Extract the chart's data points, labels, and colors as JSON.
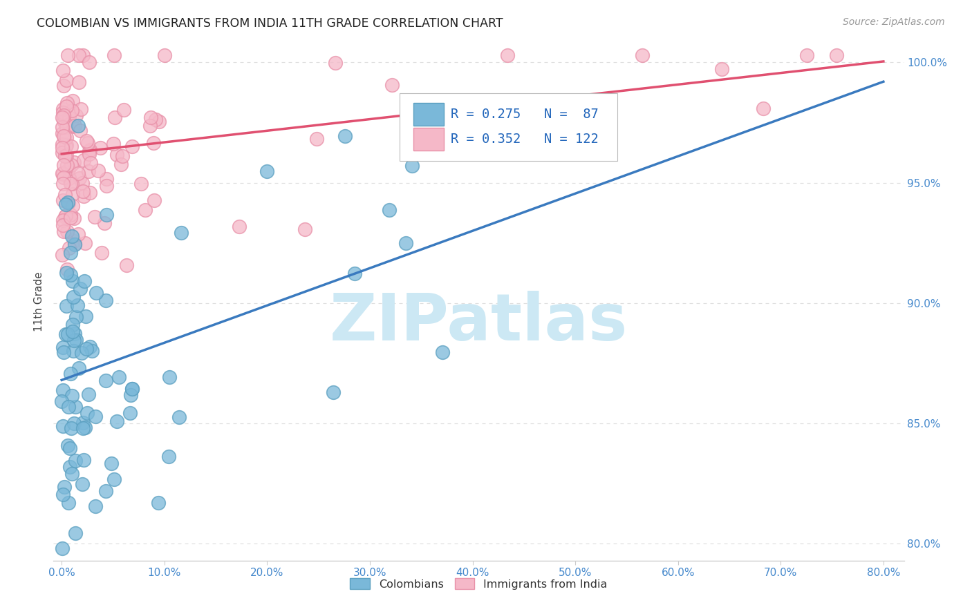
{
  "title": "COLOMBIAN VS IMMIGRANTS FROM INDIA 11TH GRADE CORRELATION CHART",
  "source": "Source: ZipAtlas.com",
  "ylabel": "11th Grade",
  "xlim": [
    -0.008,
    0.82
  ],
  "ylim": [
    0.793,
    1.008
  ],
  "x_ticks": [
    0.0,
    0.1,
    0.2,
    0.3,
    0.4,
    0.5,
    0.6,
    0.7,
    0.8
  ],
  "x_labels": [
    "0.0%",
    "10.0%",
    "20.0%",
    "30.0%",
    "40.0%",
    "50.0%",
    "60.0%",
    "70.0%",
    "80.0%"
  ],
  "y_ticks": [
    0.8,
    0.85,
    0.9,
    0.95,
    1.0
  ],
  "y_labels": [
    "80.0%",
    "85.0%",
    "90.0%",
    "95.0%",
    "100.0%"
  ],
  "colombian_R": 0.275,
  "colombian_N": 87,
  "india_R": 0.352,
  "india_N": 122,
  "colombian_color": "#7ab8d9",
  "colombian_edge": "#5a9fc0",
  "india_color": "#f5b8c8",
  "india_edge": "#e890a8",
  "trendline_colombian_color": "#3a7abf",
  "trendline_india_color": "#e05070",
  "background_color": "#ffffff",
  "grid_color": "#e0e0e0",
  "grid_style": "--",
  "title_color": "#222222",
  "source_color": "#999999",
  "tick_color": "#4488cc",
  "ylabel_color": "#444444",
  "watermark_color": "#cce8f4",
  "legend_text_color": "#2266bb"
}
